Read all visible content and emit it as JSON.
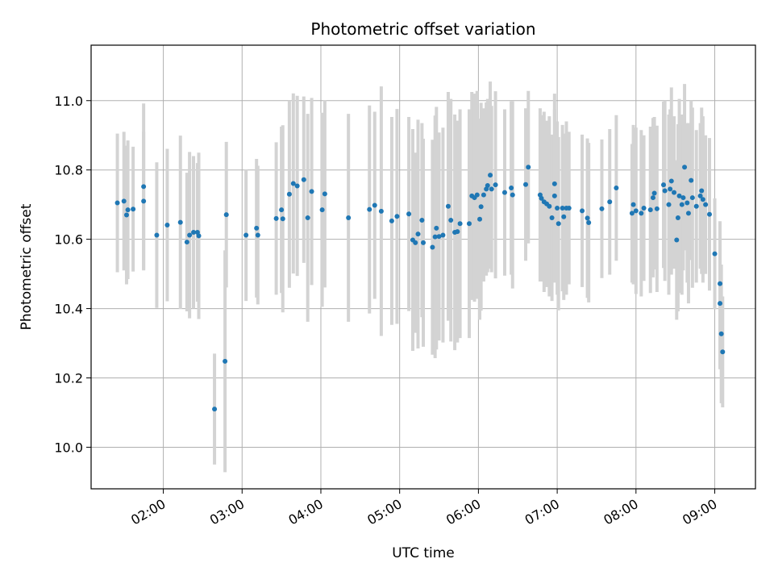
{
  "chart_data": {
    "type": "scatter",
    "title": "Photometric offset variation",
    "xlabel": "UTC time",
    "ylabel": "Photometric offset",
    "x_unit": "hours UTC",
    "xlim": [
      "01:05",
      "09:31"
    ],
    "ylim": [
      9.88,
      11.16
    ],
    "x_ticks": [
      "02:00",
      "03:00",
      "04:00",
      "05:00",
      "06:00",
      "07:00",
      "08:00",
      "09:00"
    ],
    "y_ticks": [
      "10.0",
      "10.2",
      "10.4",
      "10.6",
      "10.8",
      "11.0"
    ],
    "grid": true,
    "marker_color": "#1f77b4",
    "errorbar_color": "#d3d3d3",
    "series": [
      {
        "points": [
          [
            "01:25",
            10.705,
            0.2
          ],
          [
            "01:30",
            10.71,
            0.2
          ],
          [
            "01:32",
            10.67,
            0.2
          ],
          [
            "01:33",
            10.685,
            0.2
          ],
          [
            "01:37",
            10.687,
            0.18
          ],
          [
            "01:45",
            10.752,
            0.24
          ],
          [
            "01:45",
            10.71,
            0.2
          ],
          [
            "01:55",
            10.612,
            0.21
          ],
          [
            "02:03",
            10.641,
            0.22
          ],
          [
            "02:13",
            10.649,
            0.25
          ],
          [
            "02:18",
            10.592,
            0.2
          ],
          [
            "02:20",
            10.612,
            0.24
          ],
          [
            "02:23",
            10.62,
            0.22
          ],
          [
            "02:26",
            10.62,
            0.2
          ],
          [
            "02:27",
            10.61,
            0.24
          ],
          [
            "02:39",
            10.11,
            0.16
          ],
          [
            "02:47",
            10.248,
            0.32
          ],
          [
            "02:48",
            10.671,
            0.21
          ],
          [
            "03:03",
            10.612,
            0.19
          ],
          [
            "03:11",
            10.632,
            0.2
          ],
          [
            "03:12",
            10.612,
            0.2
          ],
          [
            "03:26",
            10.66,
            0.22
          ],
          [
            "03:30",
            10.685,
            0.24
          ],
          [
            "03:31",
            10.659,
            0.27
          ],
          [
            "03:36",
            10.73,
            0.27
          ],
          [
            "03:39",
            10.761,
            0.26
          ],
          [
            "03:42",
            10.754,
            0.26
          ],
          [
            "03:47",
            10.772,
            0.24
          ],
          [
            "03:50",
            10.662,
            0.3
          ],
          [
            "03:53",
            10.738,
            0.27
          ],
          [
            "04:01",
            10.685,
            0.28
          ],
          [
            "04:03",
            10.731,
            0.27
          ],
          [
            "04:21",
            10.662,
            0.3
          ],
          [
            "04:37",
            10.686,
            0.3
          ],
          [
            "04:41",
            10.698,
            0.27
          ],
          [
            "04:46",
            10.681,
            0.36
          ],
          [
            "04:54",
            10.653,
            0.3
          ],
          [
            "04:58",
            10.666,
            0.31
          ],
          [
            "05:07",
            10.673,
            0.28
          ],
          [
            "05:10",
            10.598,
            0.32
          ],
          [
            "05:12",
            10.59,
            0.26
          ],
          [
            "05:14",
            10.615,
            0.33
          ],
          [
            "05:17",
            10.655,
            0.28
          ],
          [
            "05:18",
            10.59,
            0.3
          ],
          [
            "05:25",
            10.577,
            0.31
          ],
          [
            "05:27",
            10.607,
            0.35
          ],
          [
            "05:28",
            10.632,
            0.35
          ],
          [
            "05:30",
            10.608,
            0.3
          ],
          [
            "05:33",
            10.612,
            0.31
          ],
          [
            "05:37",
            10.695,
            0.33
          ],
          [
            "05:39",
            10.655,
            0.35
          ],
          [
            "05:42",
            10.62,
            0.34
          ],
          [
            "05:44",
            10.622,
            0.32
          ],
          [
            "05:46",
            10.645,
            0.33
          ],
          [
            "05:53",
            10.645,
            0.33
          ],
          [
            "05:55",
            10.725,
            0.3
          ],
          [
            "05:57",
            10.72,
            0.3
          ],
          [
            "05:59",
            10.728,
            0.3
          ],
          [
            "06:01",
            10.658,
            0.29
          ],
          [
            "06:02",
            10.694,
            0.3
          ],
          [
            "06:04",
            10.728,
            0.25
          ],
          [
            "06:06",
            10.745,
            0.25
          ],
          [
            "06:07",
            10.755,
            0.25
          ],
          [
            "06:09",
            10.785,
            0.27
          ],
          [
            "06:10",
            10.745,
            0.24
          ],
          [
            "06:13",
            10.757,
            0.27
          ],
          [
            "06:20",
            10.735,
            0.24
          ],
          [
            "06:25",
            10.748,
            0.25
          ],
          [
            "06:26",
            10.728,
            0.27
          ],
          [
            "06:36",
            10.758,
            0.22
          ],
          [
            "06:38",
            10.808,
            0.22
          ],
          [
            "06:47",
            10.728,
            0.25
          ],
          [
            "06:48",
            10.718,
            0.24
          ],
          [
            "06:50",
            10.708,
            0.26
          ],
          [
            "06:52",
            10.702,
            0.24
          ],
          [
            "06:54",
            10.695,
            0.26
          ],
          [
            "06:56",
            10.662,
            0.24
          ],
          [
            "06:58",
            10.76,
            0.26
          ],
          [
            "06:58",
            10.725,
            0.25
          ],
          [
            "07:00",
            10.69,
            0.25
          ],
          [
            "07:01",
            10.645,
            0.25
          ],
          [
            "07:04",
            10.69,
            0.24
          ],
          [
            "07:05",
            10.665,
            0.24
          ],
          [
            "07:07",
            10.69,
            0.25
          ],
          [
            "07:09",
            10.69,
            0.22
          ],
          [
            "07:19",
            10.682,
            0.22
          ],
          [
            "07:23",
            10.661,
            0.23
          ],
          [
            "07:24",
            10.648,
            0.23
          ],
          [
            "07:34",
            10.688,
            0.2
          ],
          [
            "07:40",
            10.708,
            0.21
          ],
          [
            "07:45",
            10.748,
            0.21
          ],
          [
            "07:57",
            10.675,
            0.2
          ],
          [
            "07:58",
            10.7,
            0.23
          ],
          [
            "08:00",
            10.682,
            0.24
          ],
          [
            "08:04",
            10.675,
            0.24
          ],
          [
            "08:06",
            10.69,
            0.21
          ],
          [
            "08:11",
            10.685,
            0.24
          ],
          [
            "08:13",
            10.72,
            0.23
          ],
          [
            "08:14",
            10.733,
            0.22
          ],
          [
            "08:16",
            10.688,
            0.24
          ],
          [
            "08:21",
            10.757,
            0.24
          ],
          [
            "08:22",
            10.74,
            0.26
          ],
          [
            "08:25",
            10.7,
            0.26
          ],
          [
            "08:26",
            10.745,
            0.23
          ],
          [
            "08:27",
            10.768,
            0.27
          ],
          [
            "08:29",
            10.735,
            0.22
          ],
          [
            "08:31",
            10.598,
            0.23
          ],
          [
            "08:32",
            10.662,
            0.27
          ],
          [
            "08:33",
            10.725,
            0.28
          ],
          [
            "08:35",
            10.7,
            0.26
          ],
          [
            "08:36",
            10.72,
            0.21
          ],
          [
            "08:37",
            10.808,
            0.24
          ],
          [
            "08:39",
            10.705,
            0.23
          ],
          [
            "08:40",
            10.675,
            0.26
          ],
          [
            "08:42",
            10.77,
            0.23
          ],
          [
            "08:43",
            10.72,
            0.26
          ],
          [
            "08:46",
            10.695,
            0.22
          ],
          [
            "08:49",
            10.725,
            0.21
          ],
          [
            "08:50",
            10.74,
            0.24
          ],
          [
            "08:51",
            10.715,
            0.24
          ],
          [
            "08:53",
            10.7,
            0.2
          ],
          [
            "08:56",
            10.672,
            0.22
          ],
          [
            "09:00",
            10.558,
            0.16
          ],
          [
            "09:04",
            10.472,
            0.18
          ],
          [
            "09:04",
            10.415,
            0.19
          ],
          [
            "09:05",
            10.327,
            0.2
          ],
          [
            "09:06",
            10.275,
            0.16
          ]
        ]
      }
    ]
  }
}
